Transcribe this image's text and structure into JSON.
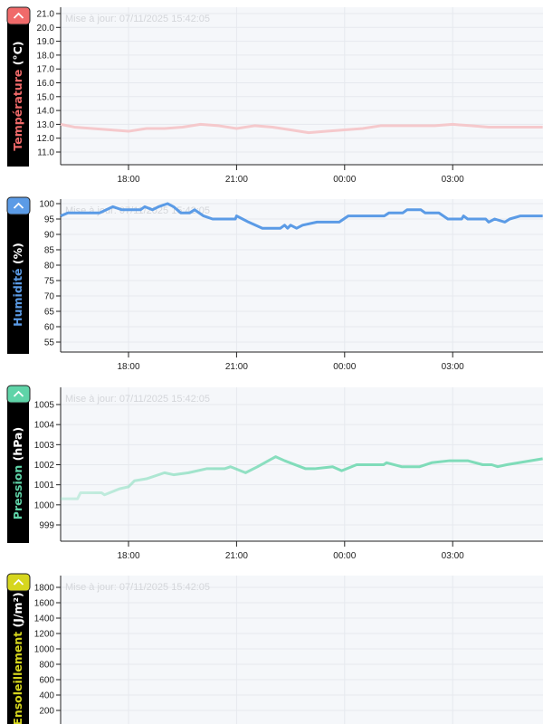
{
  "update_text": "Mise à jour: 07/11/2025 15:42:05",
  "time_ticks": [
    "18:00",
    "21:00",
    "00:00",
    "03:00"
  ],
  "collapse_icon": "chevron-up-icon",
  "chart_data": [
    {
      "type": "line",
      "name": "Température",
      "unit": "(°C)",
      "color": "#f06a6a",
      "line_color": "#f5c9cc",
      "y_ticks": [
        "21.0",
        "20.0",
        "19.0",
        "18.0",
        "17.0",
        "16.0",
        "15.0",
        "14.0",
        "13.0",
        "12.0",
        "11.0"
      ],
      "ylim": [
        10.2,
        21.4
      ],
      "x": [
        "16:07",
        "16:30",
        "17:00",
        "17:30",
        "18:00",
        "18:30",
        "19:00",
        "19:30",
        "20:00",
        "20:30",
        "21:00",
        "21:30",
        "22:00",
        "22:30",
        "23:00",
        "23:30",
        "00:00",
        "00:30",
        "01:00",
        "01:30",
        "02:00",
        "02:30",
        "03:00",
        "03:30",
        "04:00",
        "04:30",
        "05:00",
        "05:30"
      ],
      "values": [
        13.0,
        12.8,
        12.7,
        12.6,
        12.5,
        12.7,
        12.7,
        12.8,
        13.0,
        12.9,
        12.7,
        12.9,
        12.8,
        12.6,
        12.4,
        12.5,
        12.6,
        12.7,
        12.9,
        12.9,
        12.9,
        12.9,
        13.0,
        12.9,
        12.8,
        12.8,
        12.8,
        12.8
      ]
    },
    {
      "type": "line",
      "name": "Humidité",
      "unit": "(%)",
      "color": "#5b9be6",
      "line_color": "#5b9be6",
      "y_ticks": [
        "100",
        "95",
        "90",
        "85",
        "80",
        "75",
        "70",
        "65",
        "60",
        "55"
      ],
      "ylim": [
        52,
        101
      ],
      "x": [
        "16:07",
        "16:19",
        "17:12",
        "17:34",
        "17:49",
        "18:20",
        "18:27",
        "18:40",
        "18:50",
        "19:05",
        "19:15",
        "19:27",
        "19:42",
        "19:50",
        "20:05",
        "20:20",
        "20:58",
        "21:00",
        "21:10",
        "21:20",
        "21:43",
        "22:13",
        "22:20",
        "22:25",
        "22:30",
        "22:40",
        "22:50",
        "23:14",
        "23:51",
        "00:06",
        "01:06",
        "01:14",
        "01:37",
        "01:44",
        "02:07",
        "02:14",
        "02:37",
        "02:52",
        "03:15",
        "03:18",
        "03:25",
        "03:55",
        "04:00",
        "04:10",
        "04:27",
        "04:35",
        "04:53",
        "05:30"
      ],
      "values": [
        96,
        97,
        97,
        99,
        98,
        98,
        99,
        98,
        99,
        100,
        99,
        97,
        97,
        98,
        96,
        95,
        95,
        96,
        95,
        94,
        92,
        92,
        93,
        92,
        93,
        92,
        93,
        94,
        94,
        96,
        96,
        97,
        97,
        98,
        98,
        97,
        97,
        95,
        95,
        96,
        95,
        95,
        94,
        95,
        94,
        95,
        96,
        96
      ]
    },
    {
      "type": "line",
      "name": "Pression",
      "unit": "(hPa)",
      "color": "#5fd4a8",
      "line_color": "#7fdcb9",
      "y_ticks": [
        "1005",
        "1004",
        "1003",
        "1002",
        "1001",
        "1000",
        "999"
      ],
      "ylim": [
        998.2,
        1005.8
      ],
      "x": [
        "16:07",
        "16:35",
        "16:40",
        "17:15",
        "17:20",
        "17:45",
        "18:00",
        "18:10",
        "18:30",
        "19:00",
        "19:15",
        "19:40",
        "20:10",
        "20:40",
        "20:50",
        "21:15",
        "21:35",
        "22:05",
        "22:20",
        "22:55",
        "23:10",
        "23:40",
        "23:55",
        "00:20",
        "01:05",
        "01:10",
        "01:35",
        "02:05",
        "02:25",
        "02:55",
        "03:25",
        "03:50",
        "04:05",
        "04:15",
        "04:30",
        "05:30"
      ],
      "values": [
        1000.3,
        1000.3,
        1000.6,
        1000.6,
        1000.5,
        1000.8,
        1000.9,
        1001.2,
        1001.3,
        1001.6,
        1001.5,
        1001.6,
        1001.8,
        1001.8,
        1001.9,
        1001.6,
        1001.9,
        1002.4,
        1002.2,
        1001.8,
        1001.8,
        1001.9,
        1001.7,
        1002.0,
        1002.0,
        1002.1,
        1001.9,
        1001.9,
        1002.1,
        1002.2,
        1002.2,
        1002.0,
        1002.0,
        1001.9,
        1002.0,
        1002.3
      ]
    },
    {
      "type": "line",
      "name": "Ensoleillement",
      "unit": "(J/m²)",
      "color": "#d6d61e",
      "line_color": "#d6d61e",
      "y_ticks": [
        "1800",
        "1600",
        "1400",
        "1200",
        "1000",
        "800",
        "600",
        "400",
        "200"
      ],
      "ylim": [
        0,
        1900
      ],
      "x": [],
      "values": []
    }
  ]
}
